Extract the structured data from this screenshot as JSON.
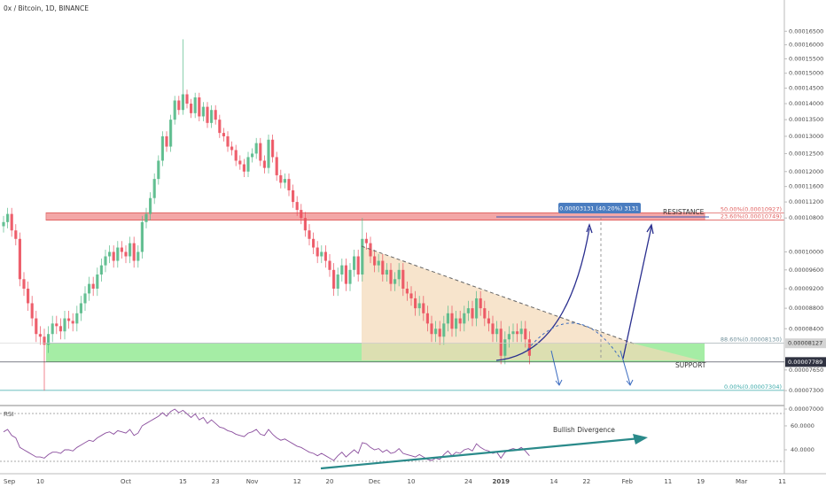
{
  "chart_data": {
    "type": "candlestick",
    "title": "0x / Bitcoin, 1D, BINANCE",
    "up_color": "#53b987",
    "down_color": "#eb4d5c",
    "yscale": "log",
    "ylim": [
      7e-05,
      0.000175
    ],
    "yticks": [
      {
        "value": 0.000165,
        "label": "0.00016500"
      },
      {
        "value": 0.00016,
        "label": "0.00016000"
      },
      {
        "value": 0.000155,
        "label": "0.00015500"
      },
      {
        "value": 0.00015,
        "label": "0.00015000"
      },
      {
        "value": 0.000145,
        "label": "0.00014500"
      },
      {
        "value": 0.00014,
        "label": "0.00014000"
      },
      {
        "value": 0.000135,
        "label": "0.00013500"
      },
      {
        "value": 0.00013,
        "label": "0.00013000"
      },
      {
        "value": 0.000125,
        "label": "0.00012500"
      },
      {
        "value": 0.00012,
        "label": "0.00012000"
      },
      {
        "value": 0.000116,
        "label": "0.00011600"
      },
      {
        "value": 0.000112,
        "label": "0.00011200"
      },
      {
        "value": 0.000108,
        "label": "0.00010800"
      },
      {
        "value": 0.0001,
        "label": "0.00010000"
      },
      {
        "value": 9.6e-05,
        "label": "0.00009600"
      },
      {
        "value": 9.2e-05,
        "label": "0.00009200"
      },
      {
        "value": 8.8e-05,
        "label": "0.00008800"
      },
      {
        "value": 8.4e-05,
        "label": "0.00008400"
      },
      {
        "value": 7.65e-05,
        "label": "0.00007650"
      },
      {
        "value": 7.3e-05,
        "label": "0.00007300"
      },
      {
        "value": 7e-05,
        "label": "0.00007000"
      }
    ],
    "x_labels": [
      "Sep",
      "10",
      "Oct",
      "15",
      "23",
      "Nov",
      "12",
      "20",
      "Dec",
      "10",
      "24",
      "2019",
      "14",
      "22",
      "Feb",
      "11",
      "19",
      "Mar",
      "11"
    ],
    "open": [
      0.000106,
      0.000107,
      0.000109,
      0.000105,
      0.000103,
      9.4e-05,
      9.2e-05,
      8.9e-05,
      8.6e-05,
      8.3e-05,
      8.25e-05,
      8.1e-05,
      8.3e-05,
      8.5e-05,
      8.45e-05,
      8.35e-05,
      8.6e-05,
      8.55e-05,
      8.5e-05,
      8.7e-05,
      8.9e-05,
      9.1e-05,
      9.3e-05,
      9.2e-05,
      9.5e-05,
      9.7e-05,
      9.9e-05,
      0.0001,
      9.8e-05,
      0.000101,
      0.0001,
      9.9e-05,
      0.000102,
      9.8e-05,
      0.0001,
      0.000107,
      0.000109,
      0.000113,
      0.000118,
      0.000123,
      0.00013,
      0.000127,
      0.000135,
      0.000141,
      0.000138,
      0.000143,
      0.00014,
      0.000137,
      0.000142,
      0.000136,
      0.000139,
      0.000134,
      0.000138,
      0.000135,
      0.000131,
      0.00013,
      0.000127,
      0.000126,
      0.000123,
      0.000122,
      0.00012,
      0.000124,
      0.000125,
      0.000128,
      0.000123,
      0.000121,
      0.000129,
      0.000124,
      0.000119,
      0.000117,
      0.000118,
      0.000115,
      0.000112,
      0.00011,
      0.000108,
      0.000105,
      0.000103,
      0.000101,
      9.9e-05,
      0.0001,
      9.8e-05,
      9.6e-05,
      9.2e-05,
      9.5e-05,
      9.7e-05,
      9.3e-05,
      9.6e-05,
      9.9e-05,
      9.5e-05,
      0.000103,
      0.000102,
      9.9e-05,
      9.7e-05,
      9.8e-05,
      9.5e-05,
      9.6e-05,
      9.3e-05,
      9.4e-05,
      9.6e-05,
      9.2e-05,
      9.1e-05,
      9e-05,
      8.8e-05,
      8.9e-05,
      8.7e-05,
      8.5e-05,
      8.3e-05,
      8.4e-05,
      8.25e-05,
      8.5e-05,
      8.7e-05,
      8.4e-05,
      8.6e-05,
      8.5e-05,
      8.7e-05,
      8.8e-05,
      8.6e-05,
      9e-05,
      8.8e-05,
      8.6e-05,
      8.5e-05,
      8.3e-05,
      8.4e-05,
      7.9e-05,
      8.2e-05,
      8.3e-05,
      8.35e-05,
      8.3e-05,
      8.4e-05,
      8.2e-05
    ],
    "high": [
      0.0001085,
      0.0001105,
      0.0001105,
      0.0001065,
      0.0001045,
      9.55e-05,
      9.35e-05,
      9.05e-05,
      8.75e-05,
      8.45e-05,
      8.4e-05,
      8.45e-05,
      8.65e-05,
      8.65e-05,
      8.6e-05,
      8.75e-05,
      8.75e-05,
      8.7e-05,
      8.85e-05,
      9.05e-05,
      9.25e-05,
      9.45e-05,
      9.45e-05,
      9.65e-05,
      9.85e-05,
      0.0001005,
      0.0001015,
      0.0001015,
      0.0001025,
      0.0001025,
      0.0001015,
      0.0001035,
      0.0001035,
      0.0001015,
      0.0001085,
      0.0001105,
      0.0001145,
      0.0001195,
      0.0001245,
      0.0001315,
      0.0001315,
      0.0001365,
      0.0001425,
      0.0001425,
      0.000162,
      0.0001445,
      0.0001415,
      0.0001435,
      0.0001435,
      0.0001405,
      0.0001405,
      0.0001395,
      0.0001395,
      0.0001365,
      0.0001325,
      0.0001315,
      0.0001285,
      0.0001275,
      0.0001245,
      0.0001235,
      0.0001255,
      0.0001265,
      0.0001295,
      0.0001295,
      0.0001245,
      0.0001305,
      0.0001305,
      0.0001255,
      0.0001205,
      0.0001195,
      0.0001195,
      0.0001165,
      0.0001135,
      0.0001115,
      0.0001095,
      0.0001065,
      0.0001045,
      0.0001025,
      0.0001015,
      0.0001015,
      9.95e-05,
      9.75e-05,
      9.65e-05,
      9.85e-05,
      9.85e-05,
      9.75e-05,
      0.0001005,
      0.0001005,
      0.000108,
      0.0001045,
      0.0001035,
      0.0001005,
      9.95e-05,
      9.95e-05,
      9.75e-05,
      9.75e-05,
      9.55e-05,
      9.75e-05,
      9.75e-05,
      9.35e-05,
      9.25e-05,
      9.15e-05,
      9.05e-05,
      9.05e-05,
      8.85e-05,
      8.65e-05,
      8.55e-05,
      8.55e-05,
      8.65e-05,
      8.85e-05,
      8.85e-05,
      8.75e-05,
      8.75e-05,
      8.85e-05,
      8.95e-05,
      8.95e-05,
      9.15e-05,
      9.15e-05,
      8.95e-05,
      8.75e-05,
      8.65e-05,
      8.55e-05,
      8.55e-05,
      8.35e-05,
      8.45e-05,
      8.5e-05,
      8.5e-05,
      8.55e-05,
      8.55e-05,
      8.35e-05
    ],
    "low": [
      0.0001045,
      0.0001055,
      0.0001035,
      0.0001015,
      9.25e-05,
      9.05e-05,
      8.75e-05,
      8.45e-05,
      8.15e-05,
      8.1e-05,
      7.3e-05,
      7.95e-05,
      8.15e-05,
      8.3e-05,
      8.2e-05,
      8.2e-05,
      8.4e-05,
      8.35e-05,
      8.35e-05,
      8.55e-05,
      8.75e-05,
      8.95e-05,
      9.05e-05,
      9.05e-05,
      9.35e-05,
      9.55e-05,
      9.75e-05,
      9.65e-05,
      9.65e-05,
      9.85e-05,
      9.75e-05,
      9.75e-05,
      9.65e-05,
      9.65e-05,
      9.85e-05,
      0.0001055,
      0.0001075,
      0.0001115,
      0.0001165,
      0.0001215,
      0.0001255,
      0.0001255,
      0.0001335,
      0.0001365,
      0.0001365,
      0.0001385,
      0.0001355,
      0.0001355,
      0.0001345,
      0.0001345,
      0.0001325,
      0.0001325,
      0.0001335,
      0.0001295,
      0.0001285,
      0.0001255,
      0.0001245,
      0.0001215,
      0.0001205,
      0.0001185,
      0.0001185,
      0.0001225,
      0.0001235,
      0.0001215,
      0.0001195,
      0.0001195,
      0.0001225,
      0.0001175,
      0.0001155,
      0.0001155,
      0.0001135,
      0.0001105,
      0.0001085,
      0.0001065,
      0.0001035,
      0.0001015,
      9.95e-05,
      9.75e-05,
      9.75e-05,
      9.65e-05,
      9.45e-05,
      9.05e-05,
      9.05e-05,
      9.35e-05,
      9.15e-05,
      9.15e-05,
      9.45e-05,
      9.35e-05,
      9.35e-05,
      0.0001005,
      9.75e-05,
      9.55e-05,
      9.55e-05,
      9.35e-05,
      9.35e-05,
      9.15e-05,
      9.15e-05,
      9.25e-05,
      9.05e-05,
      8.95e-05,
      8.85e-05,
      8.65e-05,
      8.65e-05,
      8.55e-05,
      8.35e-05,
      8.15e-05,
      8.15e-05,
      8.1e-05,
      8.1e-05,
      8.35e-05,
      8.25e-05,
      8.25e-05,
      8.35e-05,
      8.35e-05,
      8.55e-05,
      8.45e-05,
      8.45e-05,
      8.65e-05,
      8.45e-05,
      8.35e-05,
      8.15e-05,
      8.15e-05,
      7.75e-05,
      7.75e-05,
      8.05e-05,
      8.15e-05,
      8.15e-05,
      8.15e-05,
      8.05e-05,
      7.75e-05
    ],
    "close": [
      0.000107,
      0.000109,
      0.000105,
      0.000103,
      9.4e-05,
      9.2e-05,
      8.9e-05,
      8.6e-05,
      8.3e-05,
      8.25e-05,
      8.1e-05,
      8.3e-05,
      8.5e-05,
      8.45e-05,
      8.35e-05,
      8.6e-05,
      8.55e-05,
      8.5e-05,
      8.7e-05,
      8.9e-05,
      9.1e-05,
      9.3e-05,
      9.2e-05,
      9.5e-05,
      9.7e-05,
      9.9e-05,
      0.0001,
      9.8e-05,
      0.000101,
      0.0001,
      9.9e-05,
      0.000102,
      9.8e-05,
      0.0001,
      0.000107,
      0.000109,
      0.000113,
      0.000118,
      0.000123,
      0.00013,
      0.000127,
      0.000135,
      0.000141,
      0.000138,
      0.000143,
      0.00014,
      0.000137,
      0.000142,
      0.000136,
      0.000139,
      0.000134,
      0.000138,
      0.000135,
      0.000131,
      0.00013,
      0.000127,
      0.000126,
      0.000123,
      0.000122,
      0.00012,
      0.000124,
      0.000125,
      0.000128,
      0.000123,
      0.000121,
      0.000129,
      0.000124,
      0.000119,
      0.000117,
      0.000118,
      0.000115,
      0.000112,
      0.00011,
      0.000108,
      0.000105,
      0.000103,
      0.000101,
      9.9e-05,
      0.0001,
      9.8e-05,
      9.6e-05,
      9.2e-05,
      9.5e-05,
      9.7e-05,
      9.3e-05,
      9.6e-05,
      9.9e-05,
      9.5e-05,
      0.000103,
      0.000102,
      9.9e-05,
      9.7e-05,
      9.8e-05,
      9.5e-05,
      9.6e-05,
      9.3e-05,
      9.4e-05,
      9.6e-05,
      9.2e-05,
      9.1e-05,
      9e-05,
      8.8e-05,
      8.9e-05,
      8.7e-05,
      8.5e-05,
      8.3e-05,
      8.4e-05,
      8.25e-05,
      8.5e-05,
      8.7e-05,
      8.4e-05,
      8.6e-05,
      8.5e-05,
      8.7e-05,
      8.8e-05,
      8.6e-05,
      9e-05,
      8.8e-05,
      8.6e-05,
      8.5e-05,
      8.3e-05,
      8.4e-05,
      7.9e-05,
      8.2e-05,
      8.3e-05,
      8.35e-05,
      8.3e-05,
      8.4e-05,
      8.2e-05,
      7.9e-05
    ],
    "levels": [
      {
        "label": "50.00%(0.00010927)",
        "value": 0.00010927,
        "color": "#e0605f"
      },
      {
        "label": "23.60%(0.00010749)",
        "value": 0.00010749,
        "color": "#e0605f"
      },
      {
        "label": "88.60%(0.00008130)",
        "value": 8.13e-05,
        "color": "#6f8f9a"
      },
      {
        "label": "0.00%(0.00007304)",
        "value": 7.304e-05,
        "color": "#3aa9a9"
      }
    ],
    "price_tags": [
      {
        "value": 8.127e-05,
        "label": "0.00008127",
        "color": "#d4d4d4",
        "text_color": "#333333"
      },
      {
        "value": 7.789e-05,
        "label": "0.00007789",
        "color": "#2f3241",
        "text_color": "#ffffff"
      }
    ],
    "annotations": {
      "measure": "0.00003131 (40.20%) 3131",
      "resistance": "RESISTANCE",
      "support": "SUPPORT",
      "divergence": "Bullish Divergence"
    },
    "rsi": {
      "name": "RSI",
      "color": "#8b4f9e",
      "ylim": [
        20,
        75.5
      ],
      "yticks": [
        {
          "value": 60,
          "label": "60.0000"
        },
        {
          "value": 40,
          "label": "40.0000"
        }
      ],
      "values": [
        55,
        57,
        52,
        50,
        42,
        40,
        38,
        36,
        34,
        34,
        33,
        36,
        38,
        38,
        37,
        40,
        40,
        39,
        42,
        44,
        46,
        48,
        47,
        50,
        52,
        54,
        55,
        53,
        56,
        55,
        54,
        57,
        52,
        54,
        60,
        62,
        64,
        66,
        68,
        71,
        68,
        72,
        74,
        71,
        73,
        70,
        67,
        70,
        65,
        67,
        62,
        65,
        62,
        59,
        58,
        56,
        55,
        53,
        52,
        51,
        54,
        55,
        57,
        53,
        52,
        57,
        53,
        50,
        48,
        49,
        47,
        45,
        43,
        42,
        40,
        38,
        37,
        35,
        37,
        35,
        33,
        31,
        35,
        38,
        34,
        37,
        40,
        37,
        46,
        45,
        42,
        40,
        41,
        38,
        40,
        37,
        38,
        41,
        37,
        36,
        35,
        34,
        36,
        34,
        32,
        31,
        33,
        32,
        36,
        39,
        35,
        38,
        37,
        40,
        41,
        39,
        45,
        42,
        40,
        39,
        37,
        38,
        33,
        38,
        40,
        41,
        40,
        42,
        39,
        35
      ]
    }
  }
}
